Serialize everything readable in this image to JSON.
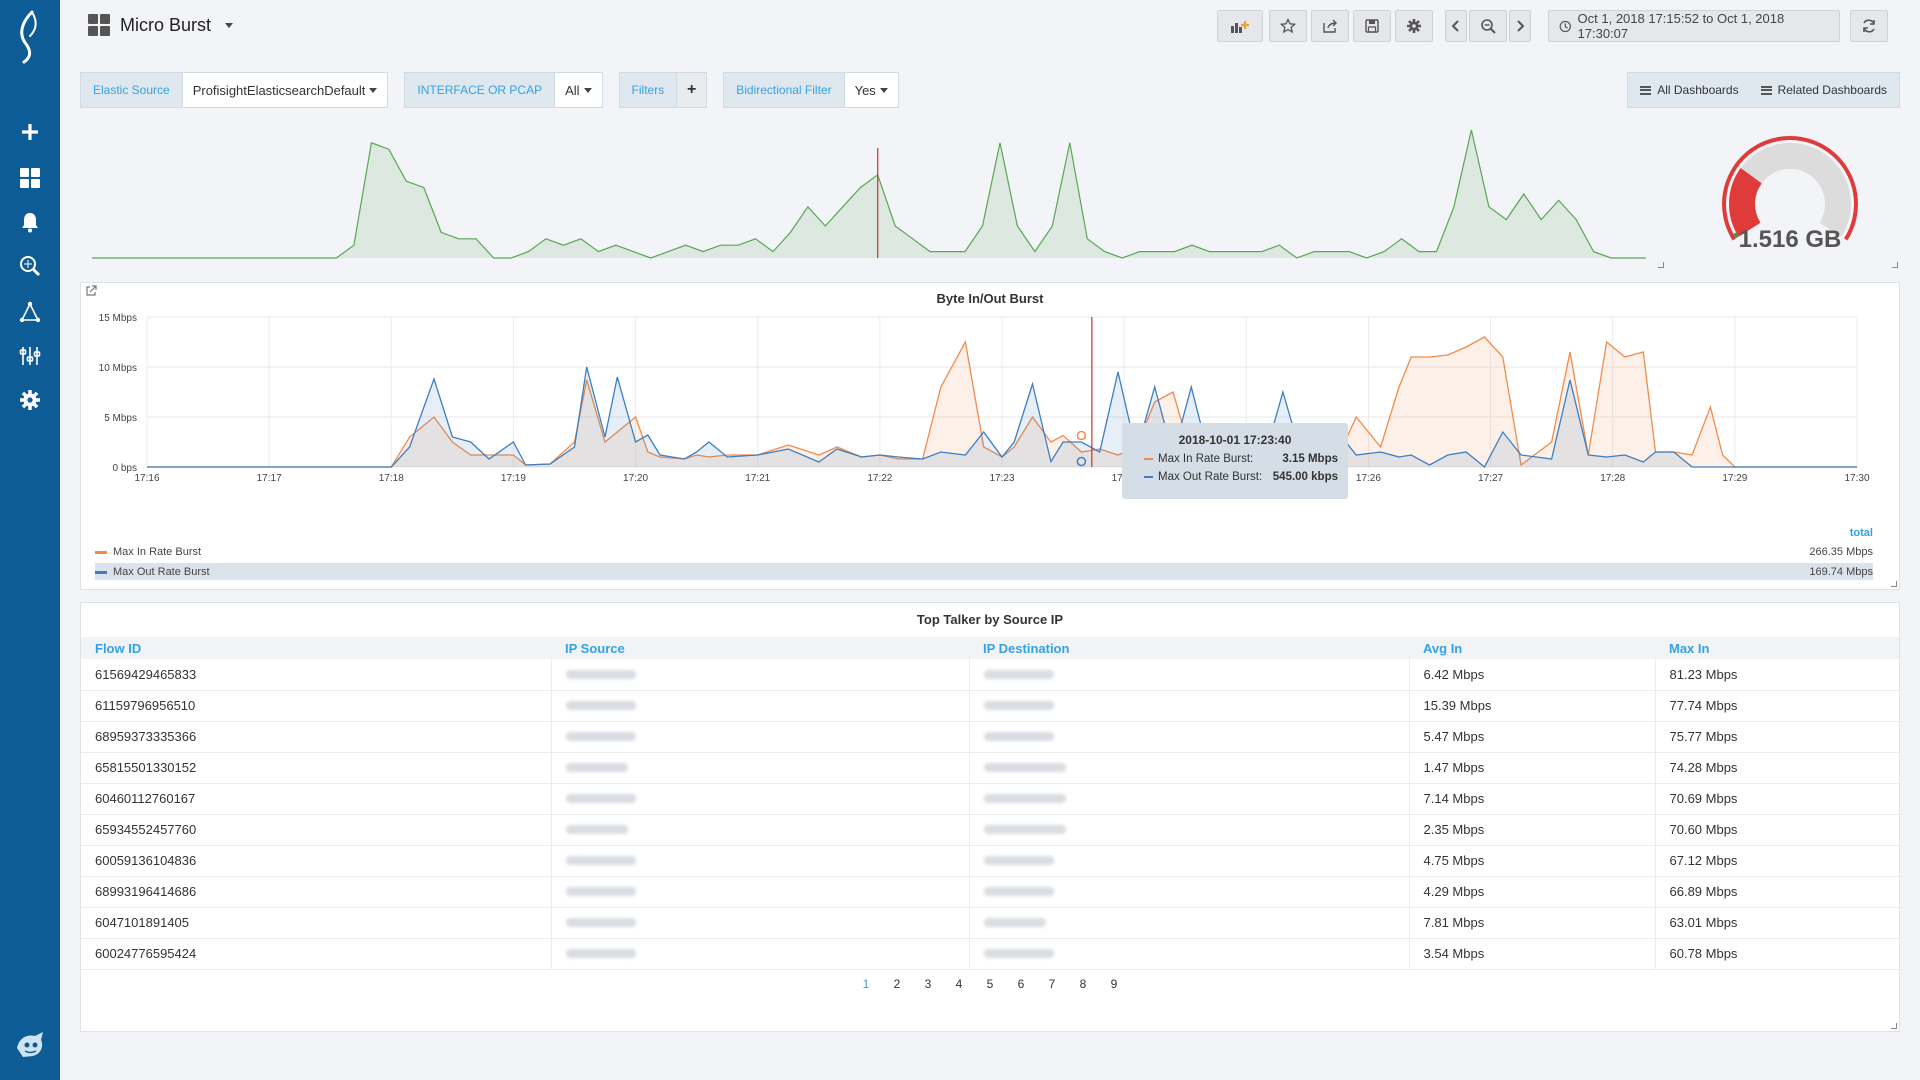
{
  "header": {
    "title": "Micro Burst",
    "time_range": "Oct 1, 2018 17:15:52 to Oct 1, 2018 17:30:07"
  },
  "sidebar": {
    "items": [
      "logo-icon",
      "plus-icon",
      "dashboard-grid-icon",
      "bell-icon",
      "explore-icon",
      "topology-icon",
      "sliders-icon",
      "gear-icon"
    ]
  },
  "variables": {
    "elastic_source": {
      "label": "Elastic Source",
      "value": "ProfisightElasticsearchDefault"
    },
    "interface": {
      "label": "INTERFACE OR PCAP",
      "value": "All"
    },
    "filters": {
      "label": "Filters",
      "add": "+"
    },
    "bidirectional": {
      "label": "Bidirectional Filter",
      "value": "Yes"
    }
  },
  "dash_links": {
    "all": "All Dashboards",
    "related": "Related Dashboards"
  },
  "gauge": {
    "value": "1.516 GB",
    "fraction": 0.28,
    "colors": {
      "red": "#e03b3b",
      "green": "#2fa04b",
      "track": "#dcdcdc"
    }
  },
  "sparkline": {
    "color": "#59a655",
    "values": [
      0,
      0,
      0,
      0,
      0,
      0,
      0,
      0,
      0,
      0,
      0,
      0,
      0,
      0,
      0,
      2,
      18,
      17,
      12,
      11,
      4,
      3,
      3,
      0,
      0,
      1,
      3,
      2,
      3,
      1,
      2,
      1,
      0,
      1,
      2,
      1,
      2,
      2,
      3,
      1,
      4,
      8,
      5,
      8,
      11,
      13,
      5,
      3,
      1,
      1,
      1,
      5,
      18,
      5,
      1,
      5,
      18,
      3,
      1,
      0,
      1,
      1,
      1,
      2,
      1,
      1,
      1,
      1,
      2,
      0,
      1,
      1,
      1,
      0,
      1,
      3,
      1,
      1,
      8,
      20,
      8,
      6,
      10,
      6,
      9,
      6,
      1,
      0,
      0,
      0
    ],
    "marker_index": 45
  },
  "chart": {
    "title": "Byte In/Out Burst",
    "y_ticks": [
      "15 Mbps",
      "10 Mbps",
      "5 Mbps",
      "0 bps"
    ],
    "x_ticks": [
      "17:16",
      "17:17",
      "17:18",
      "17:19",
      "17:20",
      "17:21",
      "17:22",
      "17:23",
      "17:24",
      "17:25",
      "17:26",
      "17:27",
      "17:28",
      "17:29",
      "17:30"
    ],
    "legend_total_header": "total",
    "tooltip": {
      "time": "2018-10-01 17:23:40",
      "in_label": "Max In Rate Burst:",
      "in_value": "3.15 Mbps",
      "out_label": "Max Out Rate Burst:",
      "out_value": "545.00 kbps"
    }
  },
  "chart_data": {
    "type": "area",
    "title": "Byte In/Out Burst",
    "ylim": [
      0,
      15
    ],
    "x_range": [
      "17:16",
      "17:30"
    ],
    "x": [
      0,
      0.5,
      1,
      1.5,
      1.75,
      2,
      2.15,
      2.35,
      2.5,
      2.65,
      2.8,
      3.0,
      3.1,
      3.3,
      3.5,
      3.6,
      3.75,
      3.85,
      4.0,
      4.1,
      4.2,
      4.4,
      4.5,
      4.6,
      4.75,
      5.0,
      5.25,
      5.5,
      5.65,
      5.85,
      6.0,
      6.15,
      6.35,
      6.5,
      6.7,
      6.85,
      7.0,
      7.1,
      7.25,
      7.4,
      7.5,
      7.65,
      7.8,
      7.95,
      8.1,
      8.25,
      8.4,
      8.55,
      8.7,
      8.85,
      9.0,
      9.15,
      9.3,
      9.45,
      9.6,
      9.75,
      9.9,
      10.1,
      10.25,
      10.35,
      10.5,
      10.65,
      10.8,
      10.95,
      11.1,
      11.25,
      11.5,
      11.65,
      11.8,
      11.95,
      12.1,
      12.25,
      12.35,
      12.5,
      12.65,
      12.8,
      12.9,
      13.0,
      13.15,
      13.3,
      13.5,
      13.7,
      14.0
    ],
    "series": [
      {
        "name": "Max In Rate Burst",
        "color": "#f28b4a",
        "total": "266.35 Mbps",
        "values": [
          0,
          0,
          0,
          0,
          0,
          0,
          3,
          5,
          2.5,
          1.2,
          1.2,
          1.2,
          0.2,
          0.3,
          2.5,
          8.7,
          2.5,
          3.5,
          5.0,
          1.5,
          1.0,
          0.8,
          1.2,
          1.0,
          1.2,
          1.2,
          2.2,
          1.2,
          2.0,
          1.0,
          1.2,
          0.8,
          0.8,
          8,
          12.5,
          2,
          1,
          2,
          5,
          2.5,
          3.15,
          1.5,
          1.8,
          1.2,
          2.0,
          6.5,
          7.5,
          1.2,
          1.5,
          1.2,
          1.2,
          1.0,
          1.2,
          1.0,
          1.2,
          1.0,
          5.0,
          2.0,
          8.0,
          11.0,
          11.0,
          11.2,
          12.0,
          13.0,
          11.0,
          0.2,
          2.5,
          11.5,
          1.2,
          12.5,
          11.0,
          11.5,
          1.5,
          1.5,
          1.2,
          6.0,
          1.2,
          0,
          0,
          0,
          0,
          0,
          0
        ]
      },
      {
        "name": "Max Out Rate Burst",
        "color": "#3d7fc1",
        "total": "169.74 Mbps",
        "values": [
          0,
          0,
          0,
          0,
          0,
          0,
          2,
          8.8,
          3.0,
          2.5,
          0.8,
          2.5,
          0.2,
          0.3,
          2.0,
          10.0,
          3.0,
          9.0,
          2.5,
          3.2,
          1.2,
          0.8,
          1.5,
          2.5,
          1.0,
          1.2,
          1.8,
          0.5,
          1.8,
          1.0,
          1.2,
          1.0,
          0.8,
          1.5,
          1.2,
          3.5,
          1.0,
          2.5,
          8.3,
          0.545,
          2.5,
          2.5,
          1.5,
          9.5,
          1.5,
          8.0,
          1.2,
          8.0,
          0.8,
          1.2,
          1.2,
          1.0,
          7.5,
          1.2,
          1.2,
          3.5,
          1.2,
          1.5,
          1.0,
          1.2,
          0.2,
          1.2,
          1.5,
          0,
          3.5,
          1.2,
          0.8,
          8.7,
          1.2,
          1.0,
          1.2,
          0.5,
          1.5,
          1.5,
          0,
          0,
          0,
          0,
          0,
          0,
          0,
          0,
          0
        ]
      }
    ]
  },
  "table": {
    "title": "Top Talker by Source IP",
    "columns": [
      "Flow ID",
      "IP Source",
      "IP Destination",
      "Avg In",
      "Max In"
    ],
    "rows": [
      [
        "61569429465833",
        "",
        "",
        "6.42 Mbps",
        "81.23 Mbps"
      ],
      [
        "61159796956510",
        "",
        "",
        "15.39 Mbps",
        "77.74 Mbps"
      ],
      [
        "68959373335366",
        "",
        "",
        "5.47 Mbps",
        "75.77 Mbps"
      ],
      [
        "65815501330152",
        "",
        "",
        "1.47 Mbps",
        "74.28 Mbps"
      ],
      [
        "60460112760167",
        "",
        "",
        "7.14 Mbps",
        "70.69 Mbps"
      ],
      [
        "65934552457760",
        "",
        "",
        "2.35 Mbps",
        "70.60 Mbps"
      ],
      [
        "60059136104836",
        "",
        "",
        "4.75 Mbps",
        "67.12 Mbps"
      ],
      [
        "68993196414686",
        "",
        "",
        "4.29 Mbps",
        "66.89 Mbps"
      ],
      [
        "6047101891405",
        "",
        "",
        "7.81 Mbps",
        "63.01 Mbps"
      ],
      [
        "60024776595424",
        "",
        "",
        "3.54 Mbps",
        "60.78 Mbps"
      ]
    ],
    "pages": [
      "1",
      "2",
      "3",
      "4",
      "5",
      "6",
      "7",
      "8",
      "9"
    ],
    "active_page": "1"
  },
  "colors": {
    "sidebar": "#0d5c95",
    "accent": "#33a2e5",
    "in_series": "#f28b4a",
    "out_series": "#3d7fc1",
    "marker": "#c0392b"
  }
}
